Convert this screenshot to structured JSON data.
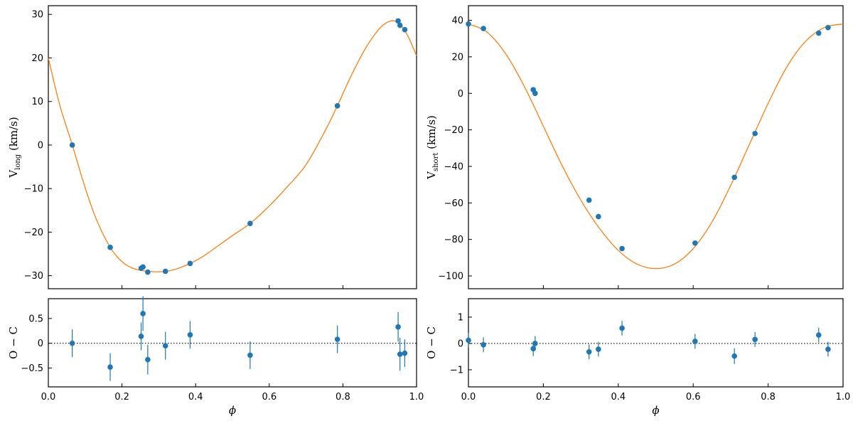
{
  "colors": {
    "model": "#ff7f0e",
    "points": "#1f77b4",
    "axes": "#000000",
    "zero_line": "#000000"
  },
  "chart_data": [
    {
      "name": "left-rv",
      "type": "scatter",
      "xlim": [
        0.0,
        1.0
      ],
      "ylim": [
        -33,
        32
      ],
      "x_ticks": [
        0.0,
        0.2,
        0.4,
        0.6,
        0.8,
        1.0
      ],
      "y_ticks": [
        -30,
        -20,
        -10,
        0,
        10,
        20,
        30
      ],
      "ylabel_main": "V",
      "ylabel_sub": "long",
      "ylabel_unit": " (km/s)",
      "grid": false,
      "points": {
        "x": [
          0.065,
          0.168,
          0.252,
          0.257,
          0.27,
          0.318,
          0.385,
          0.548,
          0.785,
          0.95,
          0.955,
          0.968
        ],
        "y": [
          0.0,
          -23.5,
          -28.3,
          -28.0,
          -29.2,
          -29.0,
          -27.2,
          -18.0,
          9.0,
          28.5,
          27.5,
          26.5
        ]
      },
      "model": {
        "x": [
          0.0,
          0.03,
          0.065,
          0.1,
          0.13,
          0.168,
          0.2,
          0.23,
          0.26,
          0.29,
          0.32,
          0.35,
          0.385,
          0.42,
          0.46,
          0.5,
          0.548,
          0.6,
          0.65,
          0.7,
          0.75,
          0.785,
          0.82,
          0.86,
          0.9,
          0.93,
          0.95,
          0.97,
          0.985,
          1.0
        ],
        "y": [
          20.0,
          9.5,
          0.0,
          -9.8,
          -17.0,
          -23.5,
          -26.8,
          -28.3,
          -28.9,
          -29.1,
          -29.0,
          -28.4,
          -27.2,
          -25.6,
          -23.2,
          -20.8,
          -18.0,
          -14.0,
          -9.5,
          -4.5,
          3.0,
          9.0,
          15.5,
          22.0,
          26.8,
          28.5,
          28.0,
          26.0,
          23.5,
          20.5
        ]
      },
      "residuals": {
        "y_ticks": [
          -0.5,
          0.0,
          0.5
        ],
        "ylim": [
          -0.88,
          0.9
        ],
        "ylabel": "O − C",
        "x": [
          0.065,
          0.168,
          0.252,
          0.257,
          0.27,
          0.318,
          0.385,
          0.548,
          0.785,
          0.95,
          0.955,
          0.968
        ],
        "y": [
          0.0,
          -0.48,
          0.14,
          0.6,
          -0.33,
          -0.05,
          0.17,
          -0.24,
          0.08,
          0.33,
          -0.22,
          -0.2
        ],
        "err": [
          0.28,
          0.28,
          0.28,
          0.35,
          0.3,
          0.28,
          0.28,
          0.28,
          0.28,
          0.3,
          0.33,
          0.28
        ]
      },
      "xlabel": "ϕ"
    },
    {
      "name": "right-rv",
      "type": "scatter",
      "xlim": [
        0.0,
        1.0
      ],
      "ylim": [
        -107,
        48
      ],
      "x_ticks": [
        0.0,
        0.2,
        0.4,
        0.6,
        0.8,
        1.0
      ],
      "y_ticks": [
        -100,
        -80,
        -60,
        -40,
        -20,
        0,
        20,
        40
      ],
      "ylabel_main": "V",
      "ylabel_sub": "short",
      "ylabel_unit": " (km/s)",
      "grid": false,
      "points": {
        "x": [
          0.0,
          0.04,
          0.173,
          0.178,
          0.322,
          0.347,
          0.41,
          0.605,
          0.71,
          0.765,
          0.935,
          0.96
        ],
        "y": [
          38.0,
          35.5,
          2.0,
          0.0,
          -58.5,
          -67.5,
          -85.0,
          -82.0,
          -46.0,
          -22.0,
          33.0,
          36.0
        ]
      },
      "model": {
        "x": [
          0.0,
          0.05,
          0.1,
          0.15,
          0.2,
          0.25,
          0.3,
          0.35,
          0.4,
          0.45,
          0.5,
          0.55,
          0.6,
          0.65,
          0.7,
          0.75,
          0.8,
          0.85,
          0.9,
          0.95,
          1.0
        ],
        "y": [
          38.0,
          33.5,
          21.5,
          3.5,
          -18.0,
          -39.5,
          -58.5,
          -74.0,
          -86.0,
          -93.5,
          -96.0,
          -93.5,
          -85.0,
          -70.5,
          -50.5,
          -28.0,
          -5.5,
          14.5,
          28.5,
          36.0,
          38.0
        ]
      },
      "residuals": {
        "y_ticks": [
          -1,
          0,
          1
        ],
        "ylim": [
          -1.65,
          1.7
        ],
        "ylabel": "O − C",
        "x": [
          0.0,
          0.04,
          0.173,
          0.178,
          0.322,
          0.347,
          0.41,
          0.605,
          0.71,
          0.765,
          0.935,
          0.96
        ],
        "y": [
          0.12,
          -0.05,
          -0.2,
          0.0,
          -0.32,
          -0.22,
          0.58,
          0.08,
          -0.48,
          0.15,
          0.32,
          -0.22
        ],
        "err": [
          0.28,
          0.28,
          0.28,
          0.28,
          0.28,
          0.28,
          0.28,
          0.28,
          0.3,
          0.28,
          0.28,
          0.28
        ]
      },
      "xlabel": "ϕ"
    }
  ]
}
